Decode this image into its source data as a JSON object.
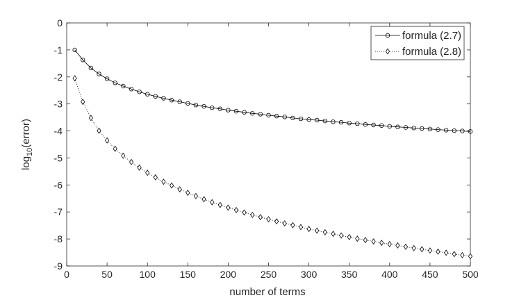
{
  "chart_data": {
    "type": "line",
    "xlabel": "number of terms",
    "ylabel_main": "log",
    "ylabel_sub": "10",
    "ylabel_tail": "(error)",
    "xlim": [
      0,
      500
    ],
    "ylim": [
      -9,
      0
    ],
    "xticks": [
      0,
      50,
      100,
      150,
      200,
      250,
      300,
      350,
      400,
      450,
      500
    ],
    "yticks": [
      0,
      -1,
      -2,
      -3,
      -4,
      -5,
      -6,
      -7,
      -8,
      -9
    ],
    "grid": false,
    "legend_position": "top-right",
    "x": [
      10,
      20,
      30,
      40,
      50,
      60,
      70,
      80,
      90,
      100,
      110,
      120,
      130,
      140,
      150,
      160,
      170,
      180,
      190,
      200,
      210,
      220,
      230,
      240,
      250,
      260,
      270,
      280,
      290,
      300,
      310,
      320,
      330,
      340,
      350,
      360,
      370,
      380,
      390,
      400,
      410,
      420,
      430,
      440,
      450,
      460,
      470,
      480,
      490,
      500
    ],
    "series": [
      {
        "name": "formula (2.7)",
        "marker": "circle",
        "linestyle": "solid",
        "color": "#000000",
        "values": [
          -1.0,
          -1.37,
          -1.67,
          -1.89,
          -2.07,
          -2.22,
          -2.34,
          -2.45,
          -2.55,
          -2.64,
          -2.72,
          -2.79,
          -2.86,
          -2.92,
          -2.98,
          -3.04,
          -3.09,
          -3.14,
          -3.18,
          -3.23,
          -3.27,
          -3.31,
          -3.35,
          -3.38,
          -3.42,
          -3.45,
          -3.48,
          -3.52,
          -3.55,
          -3.58,
          -3.6,
          -3.63,
          -3.66,
          -3.68,
          -3.71,
          -3.73,
          -3.76,
          -3.78,
          -3.8,
          -3.83,
          -3.85,
          -3.87,
          -3.89,
          -3.91,
          -3.93,
          -3.95,
          -3.97,
          -3.99,
          -4.0,
          -4.02
        ]
      },
      {
        "name": "formula (2.8)",
        "marker": "diamond",
        "linestyle": "dotted",
        "color": "#000000",
        "values": [
          -2.05,
          -2.92,
          -3.52,
          -3.99,
          -4.35,
          -4.66,
          -4.92,
          -5.15,
          -5.36,
          -5.55,
          -5.72,
          -5.88,
          -6.02,
          -6.16,
          -6.29,
          -6.41,
          -6.53,
          -6.64,
          -6.74,
          -6.84,
          -6.93,
          -7.02,
          -7.11,
          -7.19,
          -7.27,
          -7.35,
          -7.42,
          -7.49,
          -7.56,
          -7.63,
          -7.69,
          -7.75,
          -7.81,
          -7.87,
          -7.93,
          -7.99,
          -8.04,
          -8.09,
          -8.14,
          -8.19,
          -8.24,
          -8.29,
          -8.34,
          -8.38,
          -8.43,
          -8.47,
          -8.51,
          -8.56,
          -8.6,
          -8.64
        ]
      }
    ]
  }
}
